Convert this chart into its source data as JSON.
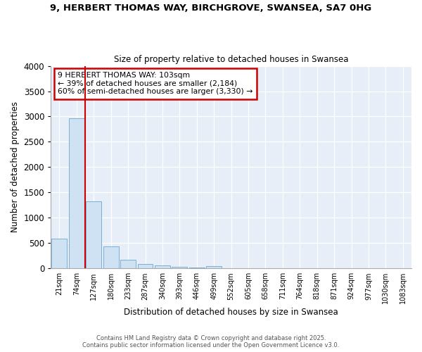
{
  "title_line1": "9, HERBERT THOMAS WAY, BIRCHGROVE, SWANSEA, SA7 0HG",
  "title_line2": "Size of property relative to detached houses in Swansea",
  "xlabel": "Distribution of detached houses by size in Swansea",
  "ylabel": "Number of detached properties",
  "categories": [
    "21sqm",
    "74sqm",
    "127sqm",
    "180sqm",
    "233sqm",
    "287sqm",
    "340sqm",
    "393sqm",
    "446sqm",
    "499sqm",
    "552sqm",
    "605sqm",
    "658sqm",
    "711sqm",
    "764sqm",
    "818sqm",
    "871sqm",
    "924sqm",
    "977sqm",
    "1030sqm",
    "1083sqm"
  ],
  "values": [
    590,
    2970,
    1330,
    430,
    165,
    85,
    55,
    35,
    25,
    40,
    0,
    0,
    0,
    0,
    0,
    0,
    0,
    0,
    0,
    0,
    0
  ],
  "bar_color": "#cfe2f3",
  "bar_edge_color": "#7bafd4",
  "red_line_x": 1.5,
  "annotation_text": "9 HERBERT THOMAS WAY: 103sqm\n← 39% of detached houses are smaller (2,184)\n60% of semi-detached houses are larger (3,330) →",
  "annotation_box_color": "#ffffff",
  "annotation_box_edge": "#cc0000",
  "red_line_color": "#cc0000",
  "ylim": [
    0,
    4000
  ],
  "yticks": [
    0,
    500,
    1000,
    1500,
    2000,
    2500,
    3000,
    3500,
    4000
  ],
  "footer_line1": "Contains HM Land Registry data © Crown copyright and database right 2025.",
  "footer_line2": "Contains public sector information licensed under the Open Government Licence v3.0.",
  "fig_bg_color": "#ffffff",
  "plot_bg_color": "#e8eef8"
}
